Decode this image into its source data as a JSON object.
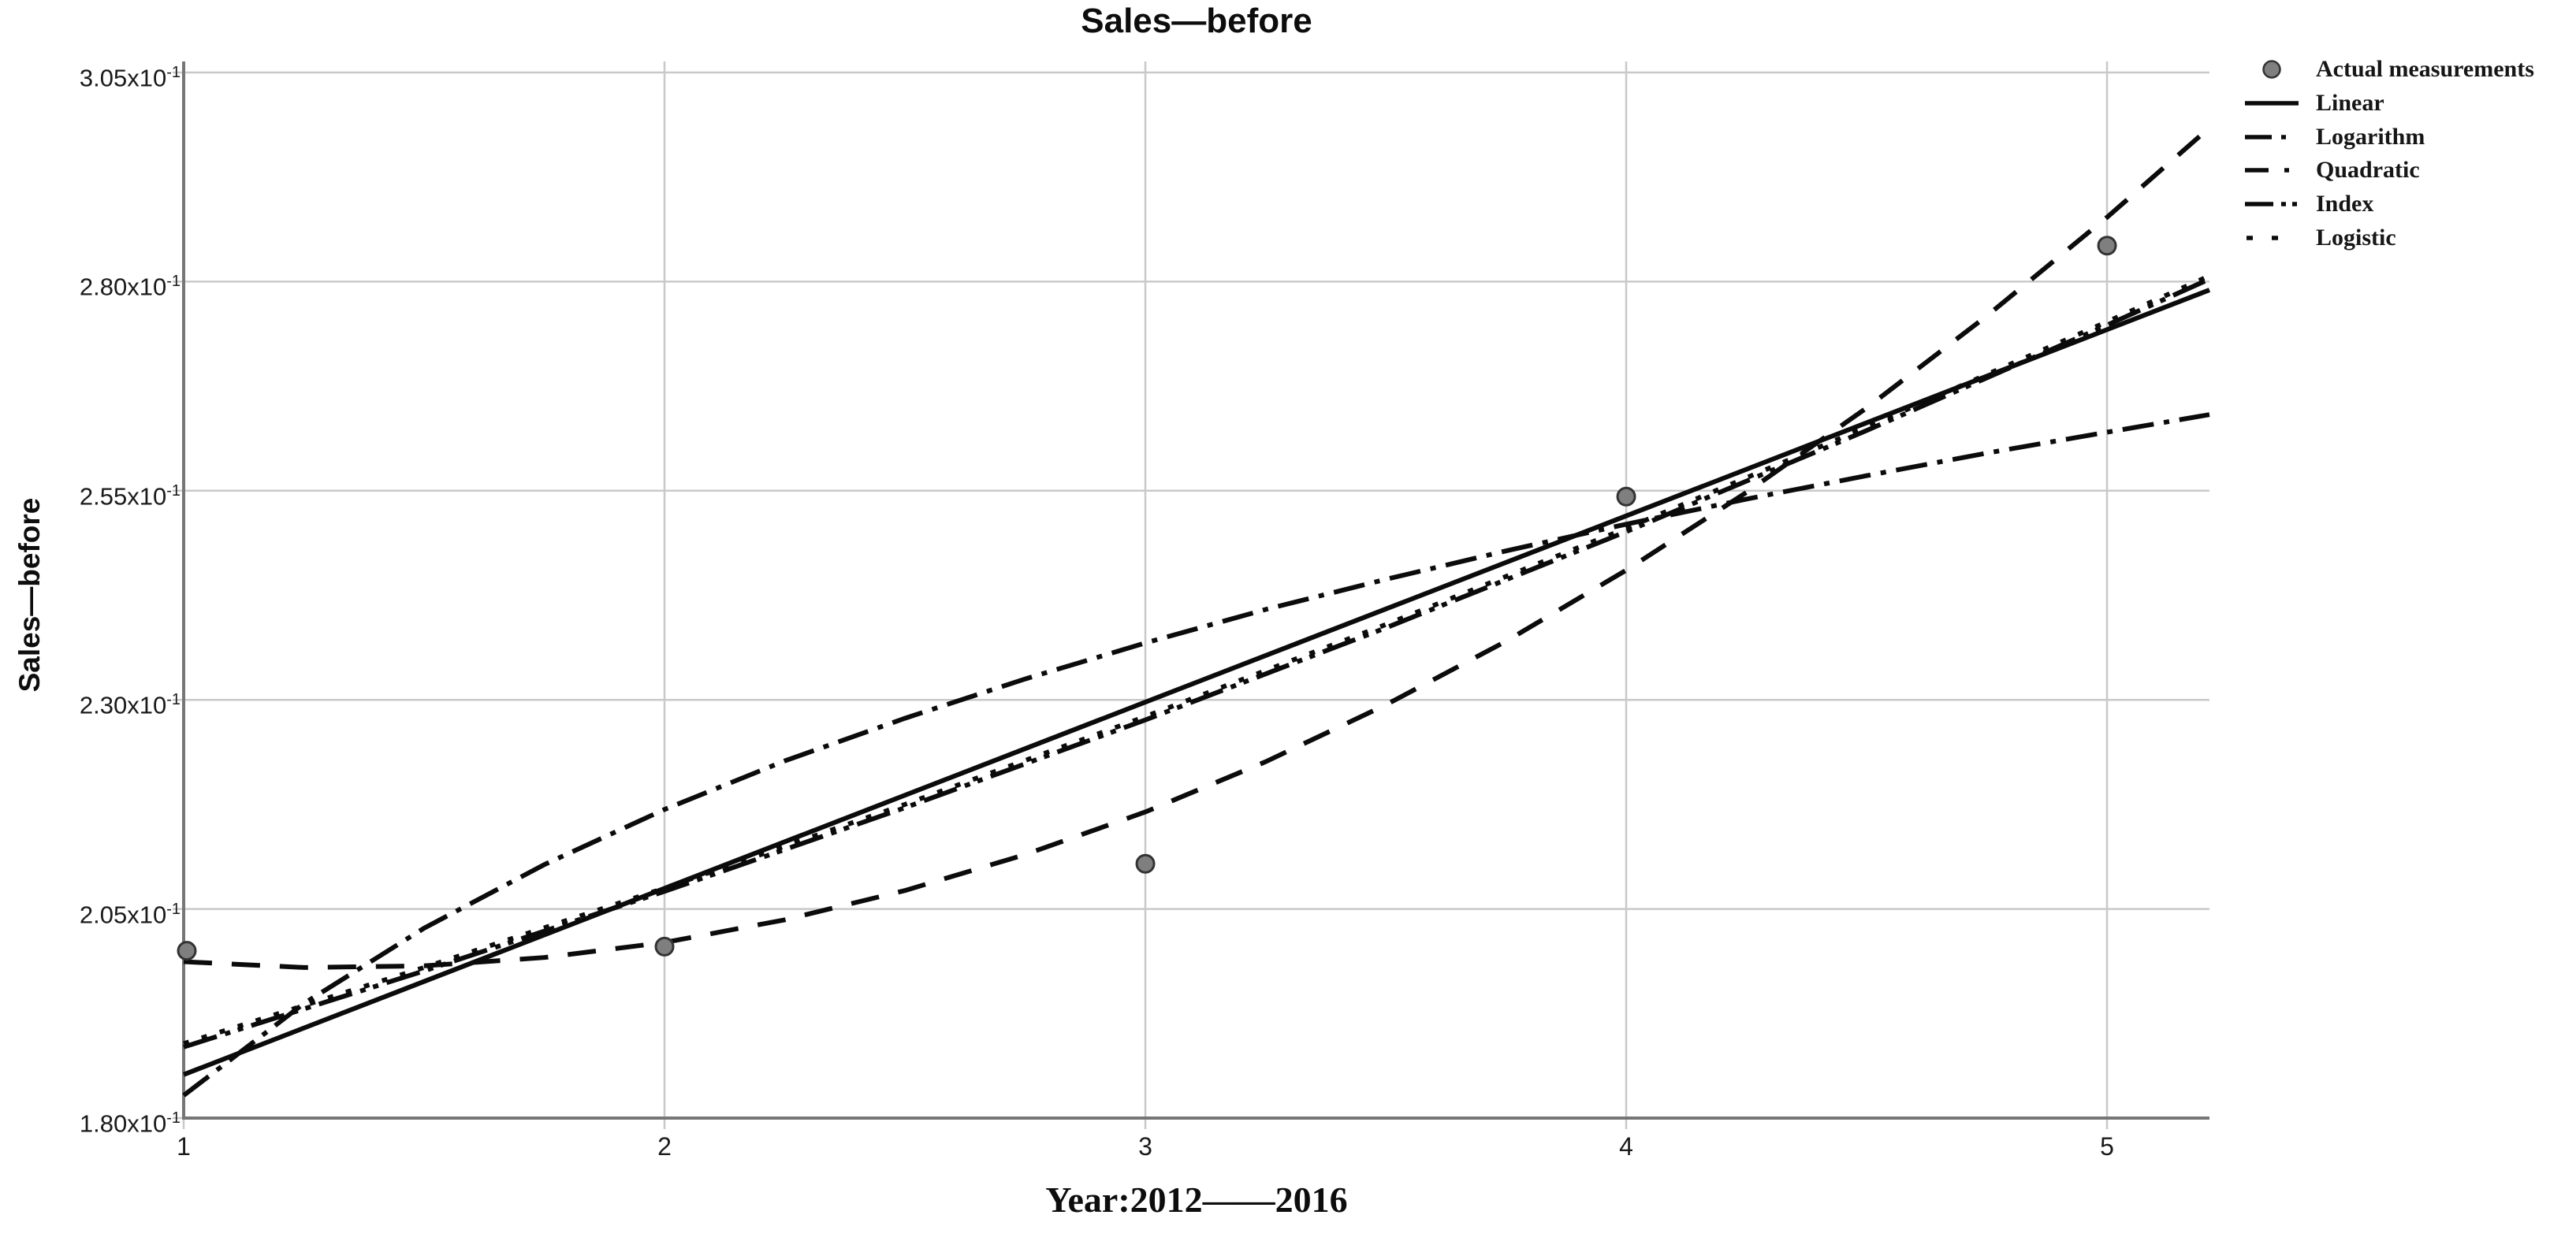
{
  "title": "Sales—before",
  "colors": {
    "curve": "#0b0b0b",
    "point_fill": "#7f7f7f",
    "point_edge": "#333333",
    "grid": "#c9c9c9",
    "axis": "#767676"
  },
  "legend": {
    "items": [
      {
        "label": "Actual measurements",
        "marker": "circle",
        "style": "none"
      },
      {
        "label": "Linear",
        "marker": "line",
        "style": "solid"
      },
      {
        "label": "Logarithm",
        "marker": "line",
        "style": "dash-dot"
      },
      {
        "label": "Quadratic",
        "marker": "line",
        "style": "dashed"
      },
      {
        "label": "Index",
        "marker": "line",
        "style": "dash-dot-dot"
      },
      {
        "label": "Logistic",
        "marker": "line",
        "style": "dotted"
      }
    ]
  },
  "chart_data": {
    "type": "line",
    "title": "Sales—before",
    "xlabel": "Year:2012——2016",
    "ylabel": "Sales—before",
    "legend_position": "top-right-outside",
    "grid": true,
    "x_range": [
      1,
      5.213
    ],
    "y_range": [
      1.8,
      3.05
    ],
    "y_unit": "x10^-1",
    "x_ticks": [
      {
        "label": "1",
        "value": 1
      },
      {
        "label": "2",
        "value": 2
      },
      {
        "label": "3",
        "value": 3
      },
      {
        "label": "4",
        "value": 4
      },
      {
        "label": "5",
        "value": 5
      }
    ],
    "y_ticks": [
      {
        "base": "1.80x10",
        "sup": "-1",
        "value": 1.8
      },
      {
        "base": "2.05x10",
        "sup": "-1",
        "value": 2.05
      },
      {
        "base": "2.30x10",
        "sup": "-1",
        "value": 2.3
      },
      {
        "base": "2.55x10",
        "sup": "-1",
        "value": 2.55
      },
      {
        "base": "2.80x10",
        "sup": "-1",
        "value": 2.8
      },
      {
        "base": "3.05x10",
        "sup": "-1",
        "value": 3.05
      }
    ],
    "actual_measurements": {
      "x": [
        1,
        2,
        3,
        4,
        5
      ],
      "y": [
        2.0,
        2.005,
        2.104,
        2.543,
        2.843
      ]
    },
    "series": [
      {
        "name": "Linear",
        "style": "solid",
        "x": [
          1,
          5.213
        ],
        "y": [
          1.852,
          2.79
        ]
      },
      {
        "name": "Logarithm",
        "style": "dash-dot",
        "x": [
          1,
          1.25,
          1.5,
          1.75,
          2,
          2.25,
          2.5,
          2.75,
          3,
          3.25,
          3.5,
          3.75,
          4,
          4.25,
          4.5,
          4.75,
          5,
          5.213
        ],
        "y": [
          1.827,
          1.937,
          2.027,
          2.103,
          2.169,
          2.227,
          2.278,
          2.325,
          2.368,
          2.408,
          2.444,
          2.478,
          2.51,
          2.54,
          2.568,
          2.595,
          2.62,
          2.641
        ]
      },
      {
        "name": "Quadratic",
        "style": "dashed",
        "x": [
          1,
          1.25,
          1.5,
          1.75,
          2,
          2.25,
          2.5,
          2.75,
          3,
          3.25,
          3.5,
          3.75,
          4,
          4.25,
          4.5,
          4.75,
          5,
          5.213
        ],
        "y": [
          1.987,
          1.98,
          1.982,
          1.992,
          2.01,
          2.037,
          2.072,
          2.115,
          2.166,
          2.226,
          2.294,
          2.37,
          2.455,
          2.548,
          2.649,
          2.759,
          2.877,
          2.984
        ]
      },
      {
        "name": "Index",
        "style": "dash-dot-dot",
        "x": [
          1,
          1.5,
          2,
          2.5,
          3,
          3.5,
          4,
          4.5,
          5,
          5.213
        ],
        "y": [
          1.885,
          1.976,
          2.071,
          2.171,
          2.276,
          2.386,
          2.501,
          2.622,
          2.748,
          2.803
        ]
      },
      {
        "name": "Logistic",
        "style": "dotted",
        "x": [
          1,
          1.5,
          2,
          2.5,
          3,
          3.5,
          4,
          4.5,
          5,
          5.213
        ],
        "y": [
          1.889,
          1.98,
          2.075,
          2.175,
          2.28,
          2.39,
          2.505,
          2.626,
          2.752,
          2.807
        ]
      }
    ]
  }
}
